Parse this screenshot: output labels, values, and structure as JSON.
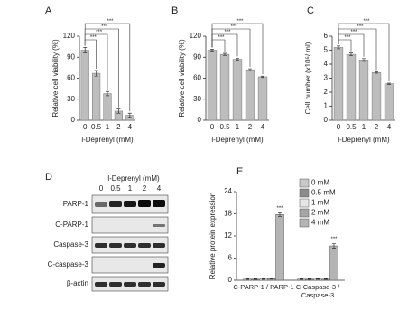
{
  "chart_data": [
    {
      "type": "bar",
      "panel": "A",
      "y_label": "Relative cell viability (%)",
      "x_label": "l-Deprenyl (mM)",
      "categories": [
        "0",
        "0.5",
        "1",
        "2",
        "4"
      ],
      "values": [
        100,
        67,
        38,
        13,
        7
      ],
      "errors": [
        4,
        4,
        3,
        3,
        3
      ],
      "significance": [
        null,
        "***",
        "***",
        "***",
        "***"
      ],
      "color": "#bdbdbd",
      "ylim": [
        0,
        120
      ],
      "yticks": [
        0,
        30,
        60,
        90,
        120
      ]
    },
    {
      "type": "bar",
      "panel": "B",
      "y_label": "Relative cell viability (%)",
      "x_label": "l-Deprenyl (mM)",
      "categories": [
        "0",
        "0.5",
        "1",
        "2",
        "4"
      ],
      "values": [
        100,
        94,
        87,
        72,
        62
      ],
      "errors": [
        1.5,
        1.5,
        1.5,
        1.5,
        1
      ],
      "significance": [
        null,
        "***",
        "***",
        "***",
        "***"
      ],
      "color": "#bdbdbd",
      "ylim": [
        0,
        120
      ],
      "yticks": [
        0,
        30,
        60,
        90,
        120
      ]
    },
    {
      "type": "bar",
      "panel": "C",
      "y_label": "Cell number (x10⁵/ ml)",
      "x_label": "l-Deprenyl (mM)",
      "categories": [
        "0",
        "0.5",
        "1",
        "2",
        "4"
      ],
      "values": [
        5.2,
        4.7,
        4.3,
        3.4,
        2.6
      ],
      "errors": [
        0.1,
        0.1,
        0.1,
        0.05,
        0.05
      ],
      "significance": [
        null,
        "***",
        "***",
        "***",
        "***"
      ],
      "color": "#bdbdbd",
      "ylim": [
        0,
        6
      ],
      "yticks": [
        0,
        1,
        2,
        3,
        4,
        5,
        6
      ]
    },
    {
      "type": "grouped_bar",
      "panel": "E",
      "y_label": "Relative protein expression",
      "categories": [
        "C-PARP-1 / PARP-1",
        "C-Caspase-3 / Caspase-3"
      ],
      "series": [
        {
          "name": "0 mM",
          "color": "#c8c8c8",
          "values": [
            0.3,
            0.3
          ],
          "errors": [
            0.1,
            0.1
          ],
          "significance": [
            null,
            null
          ]
        },
        {
          "name": "0.5 mM",
          "color": "#8c8c8c",
          "values": [
            0.3,
            0.3
          ],
          "errors": [
            0.1,
            0.1
          ],
          "significance": [
            null,
            null
          ]
        },
        {
          "name": "1 mM",
          "color": "#e6e6e6",
          "values": [
            0.3,
            0.3
          ],
          "errors": [
            0.1,
            0.1
          ],
          "significance": [
            null,
            null
          ]
        },
        {
          "name": "2 mM",
          "color": "#a5a5a5",
          "values": [
            0.4,
            0.3
          ],
          "errors": [
            0.1,
            0.1
          ],
          "significance": [
            null,
            null
          ]
        },
        {
          "name": "4 mM",
          "color": "#b4b4b4",
          "values": [
            17.8,
            9.3
          ],
          "errors": [
            0.5,
            0.6
          ],
          "significance": [
            "***",
            "***"
          ]
        }
      ],
      "ylim": [
        0,
        24
      ],
      "yticks": [
        0,
        6,
        12,
        18,
        24
      ]
    }
  ],
  "blot": {
    "panel": "D",
    "title": "l-Deprenyl (mM)",
    "lanes": [
      "0",
      "0.5",
      "1",
      "2",
      "4"
    ],
    "rows": [
      "PARP-1",
      "C-PARP-1",
      "Caspase-3",
      "C-caspase-3",
      "β-actin"
    ]
  }
}
